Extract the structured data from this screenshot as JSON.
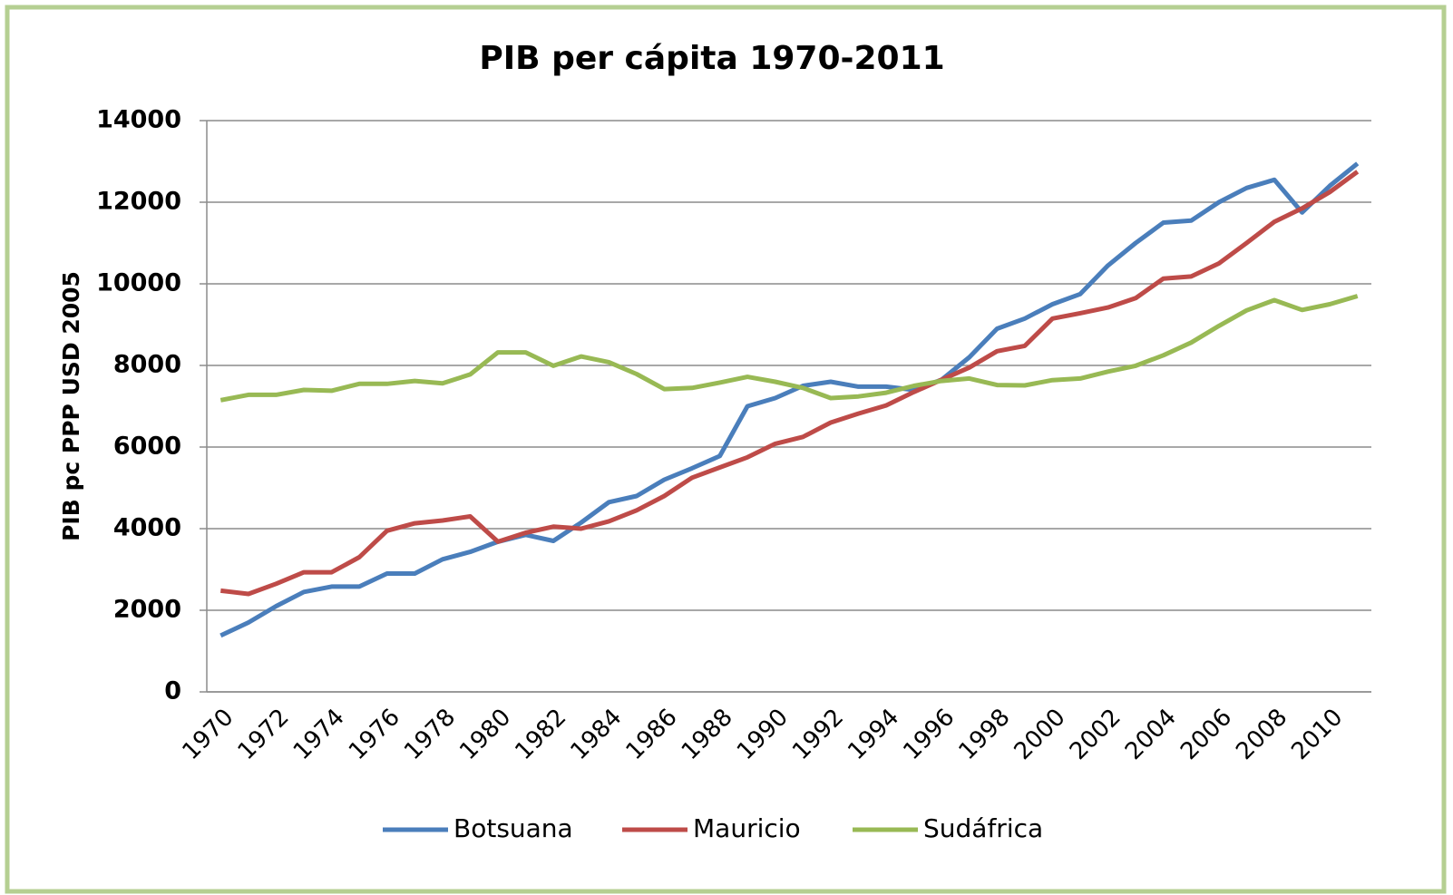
{
  "chart_data": {
    "type": "line",
    "title": "PIB per cápita 1970-2011",
    "y_label": "PIB pc PPP USD 2005",
    "categories": [
      "1970",
      null,
      "1972",
      null,
      "1974",
      null,
      "1976",
      null,
      "1978",
      null,
      "1980",
      null,
      "1982",
      null,
      "1984",
      null,
      "1986",
      null,
      "1988",
      null,
      "1990",
      null,
      "1992",
      null,
      "1994",
      null,
      "1996",
      null,
      "1998",
      null,
      "2000",
      null,
      "2002",
      null,
      "2004",
      null,
      "2006",
      null,
      "2008",
      null,
      "2010",
      null
    ],
    "series": [
      {
        "name": "Botsuana",
        "color": "#4a7ebb",
        "values": [
          1380,
          1700,
          2100,
          2450,
          2580,
          2580,
          2900,
          2900,
          3250,
          3430,
          3680,
          3850,
          3700,
          4150,
          4650,
          4800,
          5200,
          5480,
          5780,
          7000,
          7200,
          7500,
          7600,
          7480,
          7480,
          7400,
          7650,
          8200,
          8900,
          9150,
          9500,
          9750,
          10450,
          11000,
          11500,
          11550,
          12000,
          12350,
          12550,
          11750,
          12400,
          12950
        ]
      },
      {
        "name": "Mauricio",
        "color": "#be4b48",
        "values": [
          2480,
          2400,
          2650,
          2930,
          2930,
          3300,
          3950,
          4130,
          4200,
          4300,
          3680,
          3900,
          4050,
          4000,
          4180,
          4450,
          4800,
          5250,
          5500,
          5750,
          6080,
          6250,
          6600,
          6820,
          7020,
          7350,
          7650,
          7950,
          8350,
          8480,
          9150,
          9280,
          9420,
          9650,
          10130,
          10180,
          10500,
          11000,
          11520,
          11850,
          12250,
          12750
        ]
      },
      {
        "name": "Sudáfrica",
        "color": "#98b954",
        "values": [
          7150,
          7280,
          7280,
          7400,
          7380,
          7550,
          7550,
          7620,
          7560,
          7780,
          8320,
          8320,
          7990,
          8220,
          8080,
          7790,
          7420,
          7450,
          7580,
          7720,
          7600,
          7450,
          7200,
          7240,
          7330,
          7500,
          7620,
          7680,
          7520,
          7510,
          7640,
          7680,
          7850,
          7990,
          8250,
          8560,
          8970,
          9350,
          9600,
          9360,
          9500,
          9700
        ]
      }
    ],
    "ylim": [
      0,
      14000
    ],
    "yticks": [
      0,
      2000,
      4000,
      6000,
      8000,
      10000,
      12000,
      14000
    ],
    "grid": true,
    "legend": "bottom"
  }
}
